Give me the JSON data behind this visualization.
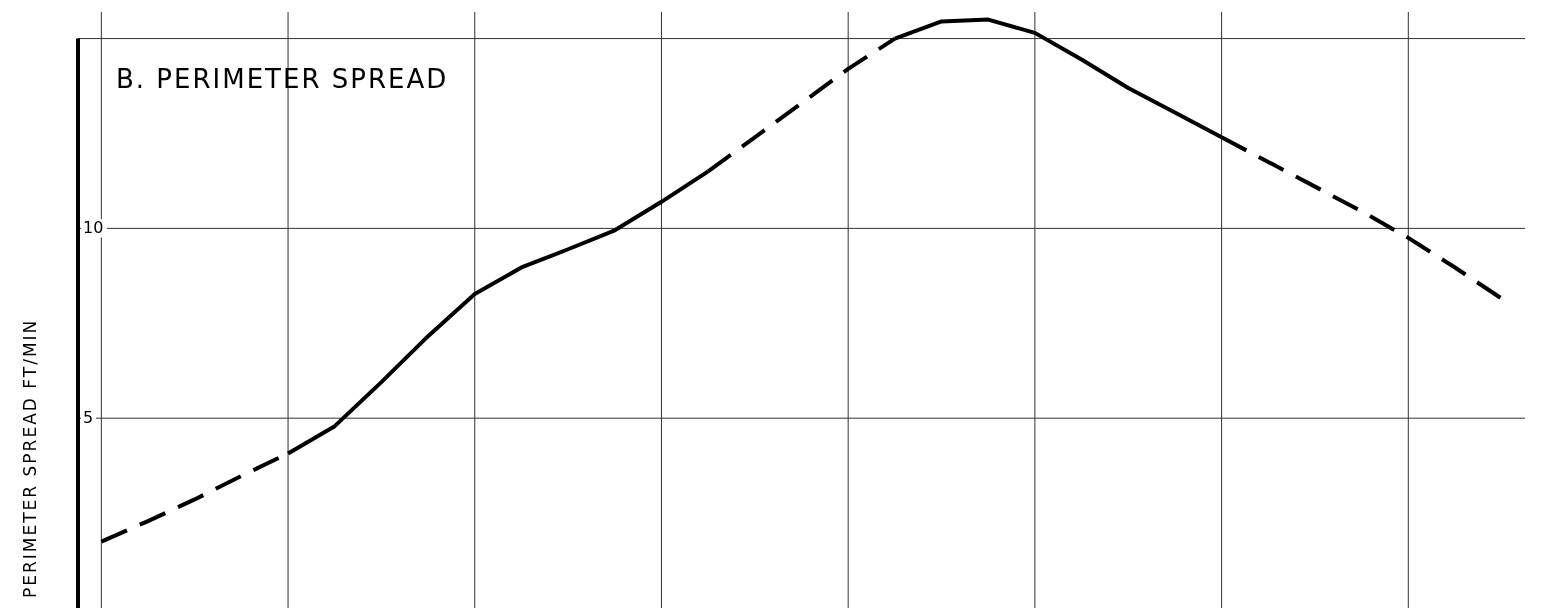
{
  "chart_data": {
    "type": "line",
    "title": "B. PERIMETER SPREAD",
    "ylabel": "PERIMETER SPREAD FT/MIN",
    "categories": [
      null,
      null,
      null,
      null,
      null,
      null,
      null,
      null,
      null,
      null,
      null,
      null,
      null,
      null,
      null,
      null,
      null,
      null,
      null,
      null,
      null,
      null,
      null,
      null,
      null,
      null,
      null,
      null,
      null,
      null,
      null
    ],
    "ylim": [
      0,
      15.7
    ],
    "yticks": [
      5,
      10,
      {
        "value": 15,
        "label": null
      }
    ],
    "grid": true,
    "marker": "none",
    "tick_labels": "y",
    "series": [
      {
        "color": "#000000",
        "line_style": "dashed",
        "values": [
          1.75,
          2.29,
          2.86,
          3.48,
          4.07,
          null,
          null,
          null,
          null,
          null,
          null,
          null,
          null,
          null,
          null,
          null,
          null,
          null,
          null,
          null,
          null,
          null,
          null,
          null,
          null,
          null,
          null,
          null,
          null,
          null,
          null
        ]
      },
      {
        "color": "#000000",
        "line_style": "solid",
        "values": [
          null,
          null,
          null,
          null,
          4.07,
          4.79,
          5.95,
          7.16,
          8.27,
          8.97,
          9.45,
          9.95,
          10.7,
          11.5,
          null,
          null,
          null,
          null,
          null,
          null,
          null,
          null,
          null,
          null,
          null,
          null,
          null,
          null,
          null,
          null,
          null
        ]
      },
      {
        "color": "#000000",
        "line_style": "dashed",
        "values": [
          null,
          null,
          null,
          null,
          null,
          null,
          null,
          null,
          null,
          null,
          null,
          null,
          null,
          11.5,
          12.4,
          13.3,
          14.2,
          15.0,
          null,
          null,
          null,
          null,
          null,
          null,
          null,
          null,
          null,
          null,
          null,
          null,
          null
        ]
      },
      {
        "color": "#000000",
        "line_style": "solid",
        "values": [
          null,
          null,
          null,
          null,
          null,
          null,
          null,
          null,
          null,
          null,
          null,
          null,
          null,
          null,
          null,
          null,
          null,
          15.0,
          15.45,
          15.5,
          15.15,
          14.45,
          13.7,
          13.05,
          12.4,
          null,
          null,
          null,
          null,
          null,
          null
        ]
      },
      {
        "color": "#000000",
        "line_style": "dashed",
        "values": [
          null,
          null,
          null,
          null,
          null,
          null,
          null,
          null,
          null,
          null,
          null,
          null,
          null,
          null,
          null,
          null,
          null,
          null,
          null,
          null,
          null,
          null,
          null,
          null,
          12.4,
          11.75,
          11.1,
          10.45,
          9.75,
          8.97,
          8.15
        ]
      }
    ]
  }
}
